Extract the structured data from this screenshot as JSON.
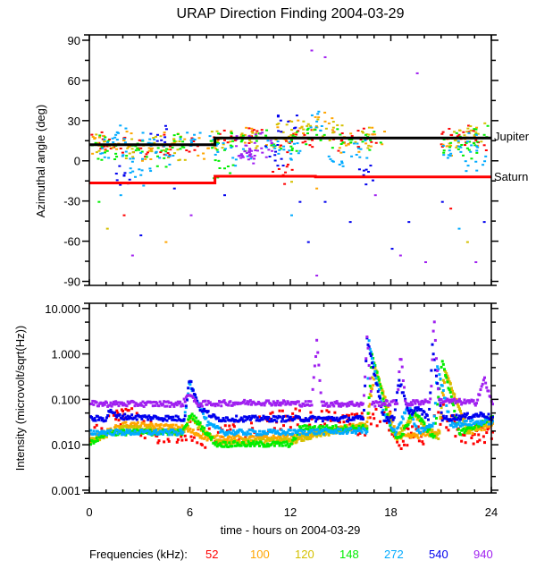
{
  "chart_data": [
    {
      "type": "scatter",
      "title": "URAP Direction Finding  2004-03-29",
      "ylabel": "Azimuthal angle (deg)",
      "xlim": [
        0,
        24
      ],
      "ylim": [
        -93,
        94
      ],
      "yticks": [
        "90",
        "60",
        "30",
        "0",
        "-30",
        "-60",
        "-90"
      ],
      "ytick_values": [
        90,
        60,
        30,
        0,
        -30,
        -60,
        -90
      ],
      "reference_lines": [
        {
          "name": "Jupiter",
          "color": "#000000",
          "steps": [
            [
              0,
              12
            ],
            [
              7.5,
              17
            ],
            [
              24,
              17
            ]
          ]
        },
        {
          "name": "Saturn",
          "color": "#ff0000",
          "steps": [
            [
              0,
              -16.5
            ],
            [
              7.5,
              -11.5
            ],
            [
              13.5,
              -12
            ],
            [
              24,
              -12
            ]
          ]
        }
      ],
      "series": [
        {
          "freq": "52",
          "points": [
            [
              0.5,
              14
            ],
            [
              1.5,
              12
            ],
            [
              3,
              10
            ],
            [
              4.5,
              13
            ],
            [
              6,
              12
            ],
            [
              8,
              16
            ],
            [
              10,
              18
            ],
            [
              12,
              15
            ],
            [
              13,
              17
            ],
            [
              15,
              16
            ],
            [
              16.5,
              17
            ],
            [
              21.3,
              17
            ],
            [
              22,
              20
            ],
            [
              23,
              16
            ],
            [
              2,
              -40
            ],
            [
              11.5,
              -10
            ],
            [
              21.5,
              -35
            ]
          ]
        },
        {
          "freq": "100",
          "points": [
            [
              0.5,
              12
            ],
            [
              2,
              16
            ],
            [
              3.5,
              8
            ],
            [
              5,
              14
            ],
            [
              7,
              10
            ],
            [
              9,
              20
            ],
            [
              11,
              18
            ],
            [
              12.5,
              25
            ],
            [
              14,
              30
            ],
            [
              15.5,
              14
            ],
            [
              17,
              18
            ],
            [
              21.5,
              12
            ],
            [
              22.5,
              18
            ],
            [
              4.5,
              -60
            ],
            [
              13.5,
              -20
            ]
          ]
        },
        {
          "freq": "120",
          "points": [
            [
              0.8,
              15
            ],
            [
              2.2,
              10
            ],
            [
              3.8,
              14
            ],
            [
              5.2,
              9
            ],
            [
              7.8,
              18
            ],
            [
              9.5,
              16
            ],
            [
              11.5,
              22
            ],
            [
              13,
              28
            ],
            [
              14.5,
              22
            ],
            [
              16,
              18
            ],
            [
              21.8,
              16
            ],
            [
              23,
              22
            ],
            [
              1,
              -50
            ],
            [
              12,
              -15
            ],
            [
              22.5,
              -60
            ]
          ]
        },
        {
          "freq": "148",
          "points": [
            [
              0.3,
              14
            ],
            [
              1,
              8
            ],
            [
              2.5,
              12
            ],
            [
              4,
              4
            ],
            [
              5.5,
              15
            ],
            [
              7.5,
              14
            ],
            [
              9,
              15
            ],
            [
              10.5,
              18
            ],
            [
              12,
              16
            ],
            [
              13.5,
              20
            ],
            [
              15,
              18
            ],
            [
              16.7,
              16
            ],
            [
              21.5,
              14
            ],
            [
              22.5,
              10
            ],
            [
              23.5,
              20
            ],
            [
              0.5,
              -30
            ],
            [
              8,
              -5
            ]
          ]
        },
        {
          "freq": "272",
          "points": [
            [
              0.7,
              10
            ],
            [
              1.5,
              20
            ],
            [
              2.5,
              0
            ],
            [
              3.5,
              14
            ],
            [
              4.5,
              5
            ],
            [
              6,
              16
            ],
            [
              7.5,
              12
            ],
            [
              9,
              5
            ],
            [
              11,
              10
            ],
            [
              12.5,
              8
            ],
            [
              13.5,
              30
            ],
            [
              14.5,
              0
            ],
            [
              16,
              10
            ],
            [
              21.5,
              6
            ],
            [
              22.5,
              15
            ],
            [
              23,
              0
            ],
            [
              1.8,
              -25
            ],
            [
              3,
              -10
            ],
            [
              12,
              -40
            ],
            [
              22,
              -50
            ]
          ]
        },
        {
          "freq": "540",
          "points": [
            [
              2,
              -10
            ],
            [
              3,
              -55
            ],
            [
              5,
              -20
            ],
            [
              8,
              -25
            ],
            [
              11,
              5
            ],
            [
              12.5,
              -30
            ],
            [
              13,
              -60
            ],
            [
              14,
              -30
            ],
            [
              15.5,
              -45
            ],
            [
              16.3,
              -10
            ],
            [
              18,
              -65
            ],
            [
              19,
              -45
            ],
            [
              21,
              -30
            ],
            [
              23.5,
              -45
            ],
            [
              4,
              20
            ],
            [
              11.8,
              30
            ]
          ]
        },
        {
          "freq": "940",
          "points": [
            [
              9.3,
              12
            ],
            [
              9.6,
              8
            ],
            [
              9.8,
              14
            ],
            [
              10.2,
              10
            ],
            [
              9.5,
              5
            ],
            [
              13.5,
              -85
            ],
            [
              13.2,
              83
            ],
            [
              14,
              78
            ],
            [
              19.5,
              66
            ],
            [
              17,
              -25
            ],
            [
              20,
              -75
            ],
            [
              23,
              -75
            ],
            [
              2.5,
              -70
            ],
            [
              18.5,
              -70
            ],
            [
              6,
              -40
            ]
          ]
        }
      ],
      "annotations": [
        "Jupiter",
        "Saturn"
      ]
    },
    {
      "type": "scatter",
      "ylabel": "Intensity (microvolt/sqrt(Hz))",
      "xlabel": "time - hours on 2004-03-29",
      "xlim": [
        0,
        24
      ],
      "xticks": [
        "0",
        "6",
        "12",
        "18",
        "24"
      ],
      "xtick_values": [
        0,
        6,
        12,
        18,
        24
      ],
      "yscale": "log",
      "ylim": [
        0.00087,
        13
      ],
      "yticks": [
        "10.000",
        "1.000",
        "0.100",
        "0.010",
        "0.001"
      ],
      "ytick_values": [
        10,
        1,
        0.1,
        0.01,
        0.001
      ],
      "series": [
        {
          "freq": "52",
          "curve": [
            [
              0,
              0.02
            ],
            [
              2,
              0.05
            ],
            [
              4,
              0.015
            ],
            [
              6,
              0.02
            ],
            [
              7,
              0.015
            ],
            [
              12,
              0.04
            ],
            [
              16.5,
              0.03
            ],
            [
              17.5,
              0.06
            ],
            [
              18.5,
              0.015
            ],
            [
              20,
              0.02
            ],
            [
              21,
              0.05
            ],
            [
              22,
              0.02
            ],
            [
              24,
              0.02
            ]
          ]
        },
        {
          "freq": "100",
          "curve": [
            [
              0,
              0.014
            ],
            [
              2,
              0.03
            ],
            [
              5.5,
              0.025
            ],
            [
              7,
              0.015
            ],
            [
              12,
              0.015
            ],
            [
              16.5,
              0.03
            ],
            [
              17,
              0.5
            ],
            [
              18.3,
              0.015
            ],
            [
              20.8,
              0.02
            ],
            [
              21.2,
              0.4
            ],
            [
              22.6,
              0.02
            ],
            [
              24,
              0.03
            ]
          ]
        },
        {
          "freq": "120",
          "curve": [
            [
              0,
              0.013
            ],
            [
              2,
              0.025
            ],
            [
              5.5,
              0.02
            ],
            [
              6,
              0.04
            ],
            [
              7.5,
              0.012
            ],
            [
              12,
              0.013
            ],
            [
              16.5,
              0.03
            ],
            [
              16.9,
              0.7
            ],
            [
              18.2,
              0.015
            ],
            [
              19.3,
              0.05
            ],
            [
              20.8,
              0.015
            ],
            [
              21.1,
              0.5
            ],
            [
              22.5,
              0.02
            ],
            [
              24,
              0.04
            ]
          ]
        },
        {
          "freq": "148",
          "curve": [
            [
              0,
              0.012
            ],
            [
              1,
              0.02
            ],
            [
              5.5,
              0.02
            ],
            [
              6,
              0.05
            ],
            [
              7.5,
              0.011
            ],
            [
              12,
              0.011
            ],
            [
              12.5,
              0.025
            ],
            [
              16.5,
              0.025
            ],
            [
              16.8,
              1
            ],
            [
              18,
              0.02
            ],
            [
              18.5,
              0.015
            ],
            [
              19.3,
              0.06
            ],
            [
              20.5,
              0.015
            ],
            [
              21,
              0.8
            ],
            [
              22,
              0.02
            ],
            [
              24,
              0.04
            ]
          ]
        },
        {
          "freq": "272",
          "curve": [
            [
              0,
              0.02
            ],
            [
              5.5,
              0.02
            ],
            [
              5.9,
              0.25
            ],
            [
              7,
              0.03
            ],
            [
              8,
              0.02
            ],
            [
              12,
              0.02
            ],
            [
              16.5,
              0.022
            ],
            [
              16.6,
              2
            ],
            [
              17.5,
              0.05
            ],
            [
              18.2,
              0.02
            ],
            [
              19,
              0.08
            ],
            [
              19.5,
              0.02
            ],
            [
              20.5,
              0.03
            ],
            [
              20.7,
              0.6
            ],
            [
              21.5,
              0.03
            ],
            [
              24,
              0.035
            ]
          ]
        },
        {
          "freq": "540",
          "curve": [
            [
              0,
              0.04
            ],
            [
              0.9,
              0.04
            ],
            [
              1.2,
              0.065
            ],
            [
              1.5,
              0.045
            ],
            [
              5.6,
              0.04
            ],
            [
              5.9,
              0.3
            ],
            [
              6.5,
              0.07
            ],
            [
              7.5,
              0.04
            ],
            [
              16.3,
              0.04
            ],
            [
              16.5,
              2.5
            ],
            [
              17.5,
              0.04
            ],
            [
              18.1,
              0.04
            ],
            [
              18.4,
              0.3
            ],
            [
              19,
              0.05
            ],
            [
              19.5,
              0.07
            ],
            [
              20.2,
              0.04
            ],
            [
              20.4,
              1.5
            ],
            [
              21,
              0.04
            ],
            [
              23.5,
              0.05
            ],
            [
              24,
              0.04
            ]
          ]
        },
        {
          "freq": "940",
          "curve": [
            [
              0,
              0.085
            ],
            [
              5.5,
              0.085
            ],
            [
              5.9,
              0.15
            ],
            [
              6.3,
              0.085
            ],
            [
              10,
              0.092
            ],
            [
              13.2,
              0.085
            ],
            [
              13.5,
              2.0
            ],
            [
              13.8,
              0.085
            ],
            [
              16.3,
              0.085
            ],
            [
              16.5,
              2.5
            ],
            [
              16.8,
              0.085
            ],
            [
              18.3,
              0.09
            ],
            [
              18.5,
              1.2
            ],
            [
              18.8,
              0.085
            ],
            [
              20.3,
              0.1
            ],
            [
              20.5,
              7
            ],
            [
              20.8,
              0.1
            ],
            [
              23,
              0.09
            ],
            [
              23.5,
              0.3
            ],
            [
              24,
              0.08
            ]
          ]
        }
      ]
    }
  ],
  "legend": {
    "label": "Frequencies (kHz):",
    "placement": "bottom",
    "items": [
      {
        "label": "52",
        "color": "#ff0000"
      },
      {
        "label": "100",
        "color": "#ffa500"
      },
      {
        "label": "120",
        "color": "#d4c000"
      },
      {
        "label": "148",
        "color": "#00ee00"
      },
      {
        "label": "272",
        "color": "#00aaff"
      },
      {
        "label": "540",
        "color": "#0000ee"
      },
      {
        "label": "940",
        "color": "#a020f0"
      }
    ]
  }
}
